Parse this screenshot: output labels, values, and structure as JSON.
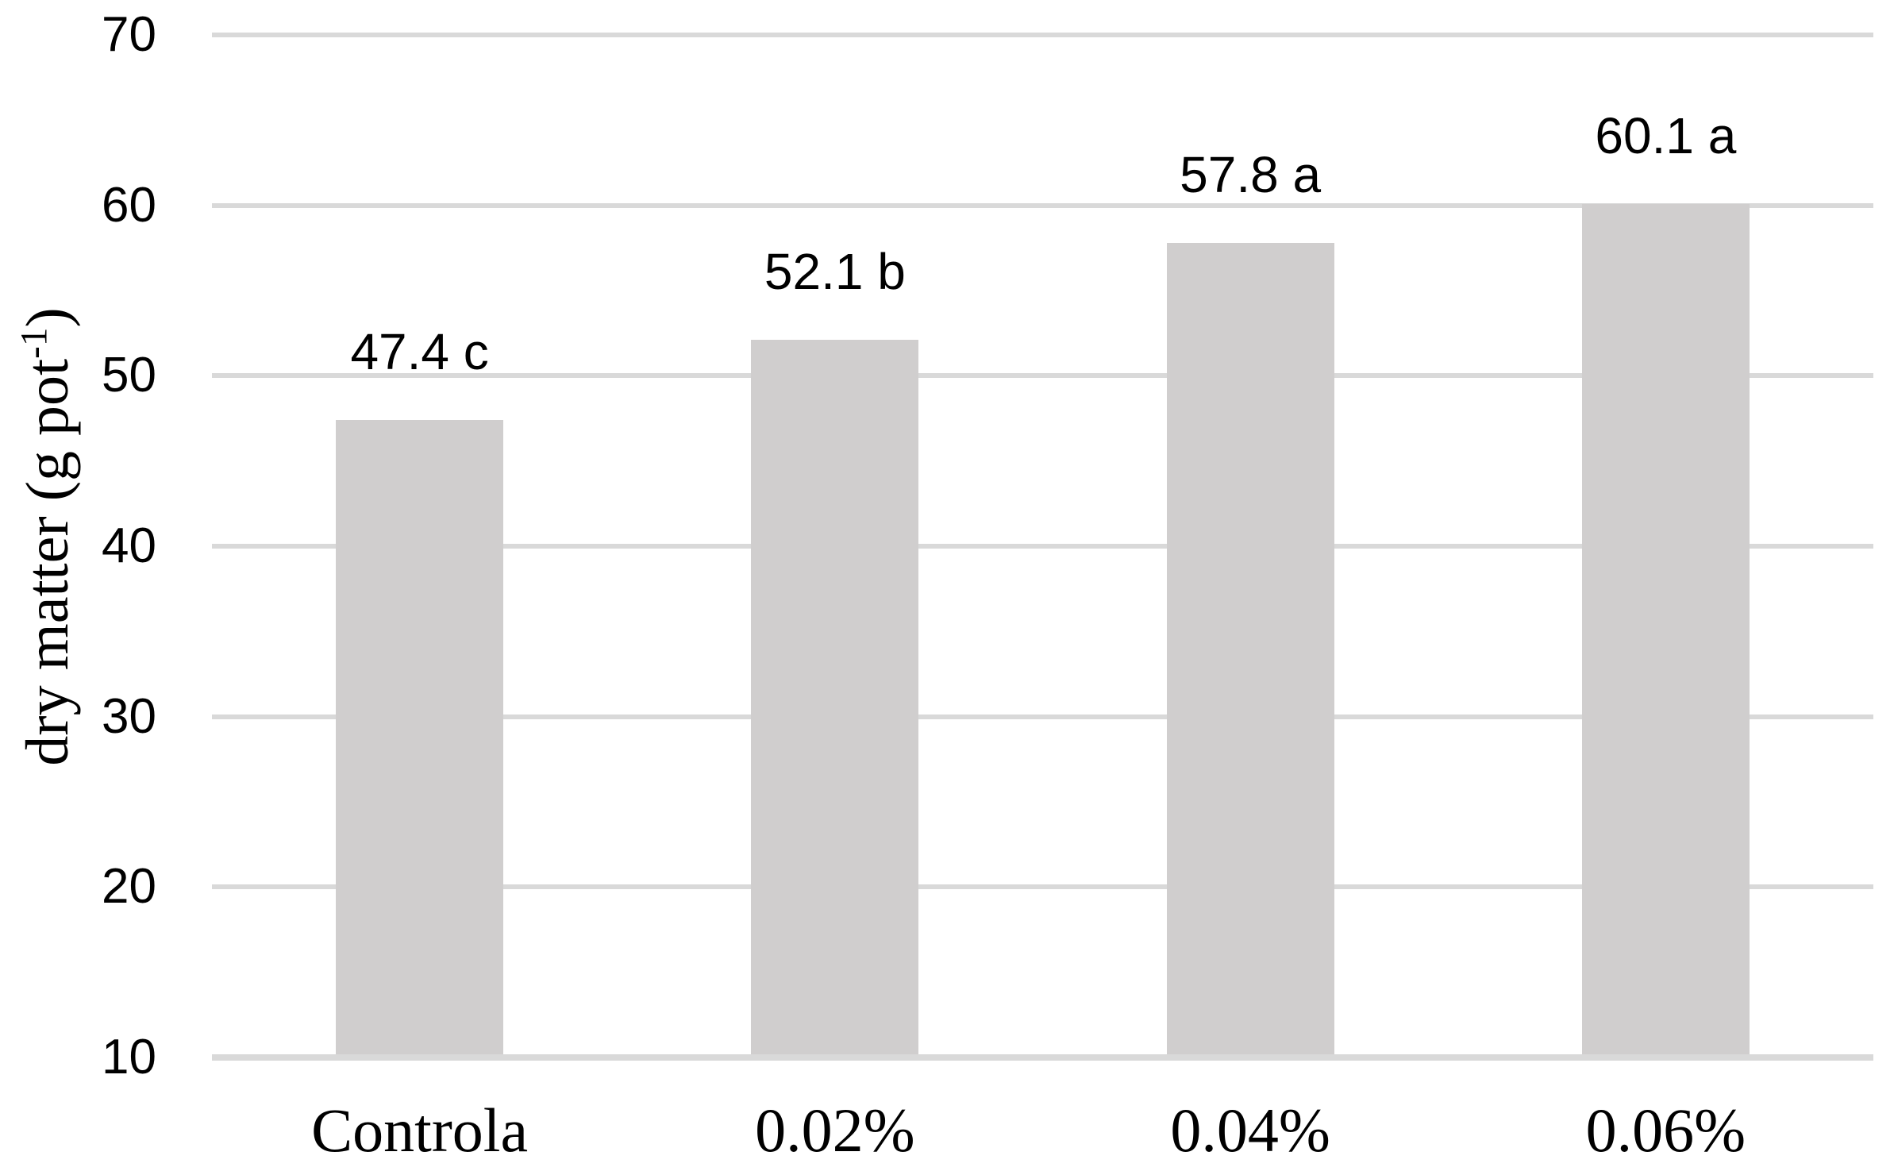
{
  "chart_data": {
    "type": "bar",
    "title": "",
    "xlabel": "",
    "ylabel": "dry matter (g pot⁻¹)",
    "ylabel_parts": {
      "prefix": "dry matter (g pot",
      "superscript": "-1",
      "suffix": ")"
    },
    "categories": [
      "Controla",
      "0.02%",
      "0.04%",
      "0.06%"
    ],
    "values": [
      47.4,
      52.1,
      57.8,
      60.1
    ],
    "value_labels": [
      "47.4 c",
      "52.1 b",
      "57.8 a",
      "60.1 a"
    ],
    "significance_letters": [
      "c",
      "b",
      "a",
      "a"
    ],
    "ylim": [
      10,
      70
    ],
    "yticks": [
      10,
      20,
      30,
      40,
      50,
      60,
      70
    ],
    "grid": true,
    "legend": false,
    "colors": {
      "bar_fill": "#d0cece",
      "gridline": "#d9d9d9",
      "text": "#000000",
      "background": "#ffffff"
    }
  }
}
